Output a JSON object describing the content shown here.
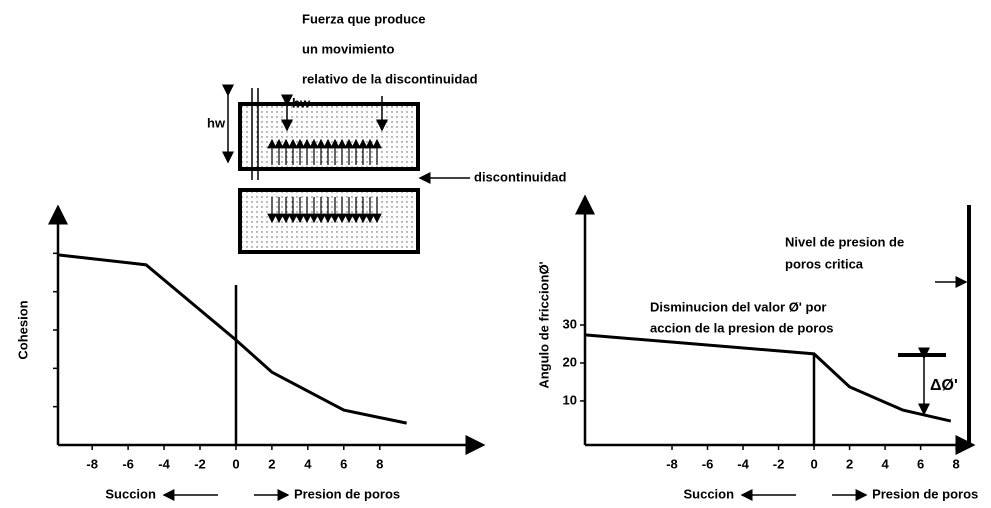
{
  "diagram": {
    "force_label": [
      "Fuerza que produce",
      "un movimiento",
      "relativo de la discontinuidad"
    ],
    "hw_side": "hw",
    "hw_top": "hw",
    "discontinuity_label": "discontinuidad"
  },
  "chart_data": [
    {
      "type": "line",
      "ylabel": "Cohesion",
      "xlabel_left": "Succion",
      "xlabel_right": "Presion de poros",
      "x": [
        -9.9,
        -5,
        0,
        2,
        6,
        9.5
      ],
      "values": [
        4.96,
        4.7,
        2.74,
        1.9,
        0.91,
        0.57
      ],
      "color": "#000000",
      "xlim": [
        -9.9,
        13.3
      ],
      "xticks": [
        -8,
        -6,
        -4,
        -2,
        0,
        2,
        4,
        6,
        8
      ],
      "ylim": [
        0,
        6
      ],
      "yticks": [
        {
          "value": 1,
          "label": null
        },
        {
          "value": 2,
          "label": null
        },
        {
          "value": 3,
          "label": null
        },
        {
          "value": 4,
          "label": null
        },
        {
          "value": 5,
          "label": null
        }
      ]
    },
    {
      "type": "line",
      "ylabel": "Angulo de friccionØ'",
      "xlabel_left": "Succion",
      "xlabel_right": "Presion de poros",
      "x": [
        -12.9,
        0,
        2,
        5,
        7.7
      ],
      "values": [
        27.4,
        22.4,
        13.7,
        7.6,
        4.7
      ],
      "color": "#000000",
      "xlim": [
        -12.9,
        8.5
      ],
      "xticks": [
        -8,
        -6,
        -4,
        -2,
        0,
        2,
        4,
        6,
        8
      ],
      "ylim": [
        -1.6,
        61.6
      ],
      "yticks": [
        10,
        20,
        30
      ],
      "annotations": [
        "Nivel de presion de",
        "poros critica",
        "Disminucion del valor Ø' por",
        "accion de la presion de poros",
        "ΔØ'"
      ]
    }
  ]
}
